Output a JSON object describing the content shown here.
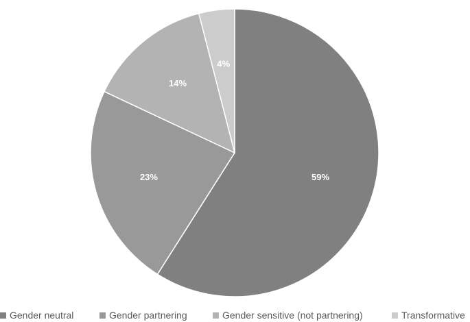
{
  "chart_data": {
    "type": "pie",
    "title": "",
    "categories": [
      "Gender neutral",
      "Gender partnering",
      "Gender sensitive (not partnering)",
      "Transformative"
    ],
    "values": [
      59,
      23,
      14,
      4
    ],
    "labels": [
      "59%",
      "23%",
      "14%",
      "4%"
    ],
    "colors": [
      "#808080",
      "#999999",
      "#b3b3b3",
      "#cccccc"
    ],
    "start_angle": "12 o'clock",
    "direction": "clockwise",
    "legend": "bottom"
  }
}
